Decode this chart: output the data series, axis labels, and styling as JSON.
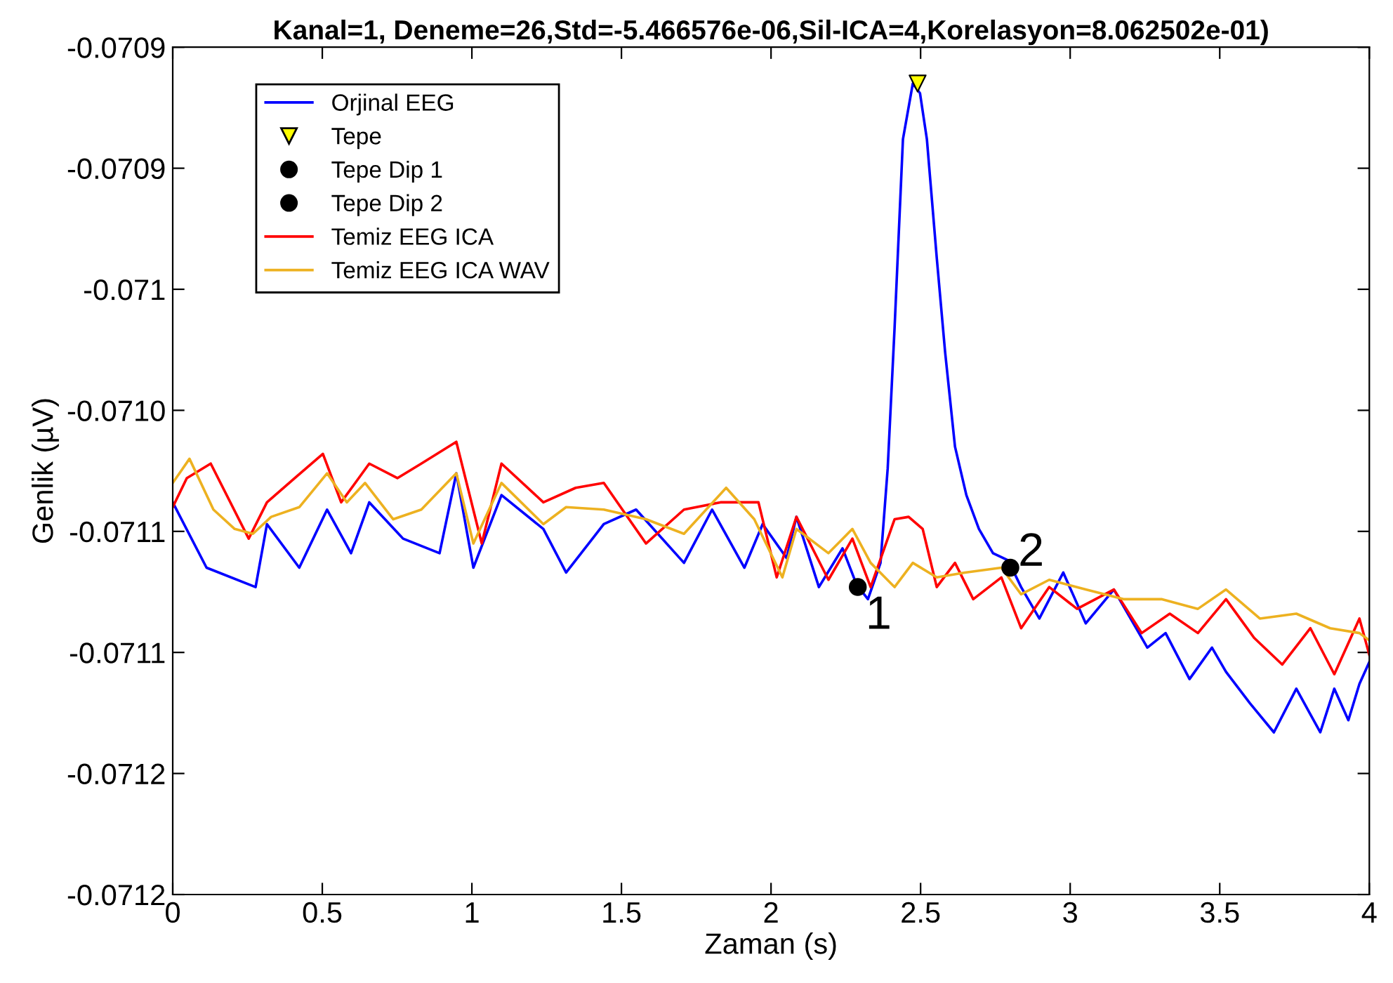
{
  "chart_data": {
    "type": "line",
    "title": "Kanal=1, Deneme=26,Std=-5.466576e-06,Sil-ICA=4,Korelasyon=8.062502e-01)",
    "xlabel": "Zaman (s)",
    "ylabel": "Genlik (µV)",
    "xlim": [
      0,
      4
    ],
    "xticks": [
      0,
      0.5,
      1,
      1.5,
      2,
      2.5,
      3,
      3.5,
      4
    ],
    "ylim": [
      -0.0712,
      -0.07085
    ],
    "yticks": [
      {
        "value": -0.0712,
        "label": "-0.0712"
      },
      {
        "value": -0.07115,
        "label": "-0.0712"
      },
      {
        "value": -0.0711,
        "label": "-0.0711"
      },
      {
        "value": -0.07105,
        "label": "-0.0711"
      },
      {
        "value": -0.071,
        "label": "-0.0710"
      },
      {
        "value": -0.07095,
        "label": "-0.071"
      },
      {
        "value": -0.0709,
        "label": "-0.0709"
      },
      {
        "value": -0.07085,
        "label": "-0.0709"
      }
    ],
    "grid": false,
    "legend": "top left",
    "series": [
      {
        "name": "Orjinal EEG",
        "color": "#0000ff",
        "marker": "none",
        "x": [
          0,
          0.113,
          0.277,
          0.315,
          0.423,
          0.516,
          0.596,
          0.657,
          0.77,
          0.892,
          0.948,
          1.005,
          1.099,
          1.239,
          1.315,
          1.441,
          1.549,
          1.709,
          1.803,
          1.911,
          1.972,
          2.052,
          2.085,
          2.16,
          2.239,
          2.286,
          2.324,
          2.366,
          2.39,
          2.413,
          2.441,
          2.474,
          2.498,
          2.521,
          2.554,
          2.582,
          2.615,
          2.653,
          2.695,
          2.742,
          2.793,
          2.836,
          2.897,
          2.977,
          3.052,
          3.146,
          3.258,
          3.319,
          3.399,
          3.474,
          3.521,
          3.601,
          3.681,
          3.756,
          3.836,
          3.883,
          3.93,
          3.967,
          4.0
        ],
        "values": [
          -0.071038,
          -0.071065,
          -0.071073,
          -0.071047,
          -0.071065,
          -0.071041,
          -0.071059,
          -0.071038,
          -0.071053,
          -0.071059,
          -0.071026,
          -0.071065,
          -0.071035,
          -0.071049,
          -0.071067,
          -0.071047,
          -0.071041,
          -0.071063,
          -0.071041,
          -0.071065,
          -0.071047,
          -0.071061,
          -0.071044,
          -0.071073,
          -0.071057,
          -0.071072,
          -0.071078,
          -0.071063,
          -0.071024,
          -0.070966,
          -0.070888,
          -0.070865,
          -0.070869,
          -0.070888,
          -0.070937,
          -0.070976,
          -0.071015,
          -0.071035,
          -0.071049,
          -0.071059,
          -0.071062,
          -0.071073,
          -0.071086,
          -0.071067,
          -0.071088,
          -0.071074,
          -0.071098,
          -0.071092,
          -0.071111,
          -0.071098,
          -0.071108,
          -0.071121,
          -0.071133,
          -0.071115,
          -0.071133,
          -0.071115,
          -0.071128,
          -0.071113,
          -0.071104
        ]
      },
      {
        "name": "Tepe",
        "type": "scatter",
        "color": "#ffff00",
        "marker": "triangle",
        "x": [
          2.49
        ],
        "values": [
          -0.070865
        ]
      },
      {
        "name": "Tepe Dip 1",
        "type": "scatter",
        "color": "#000000",
        "marker": "circle",
        "x": [
          2.29
        ],
        "values": [
          -0.071073
        ]
      },
      {
        "name": "Tepe Dip 2",
        "type": "scatter",
        "color": "#000000",
        "marker": "circle",
        "x": [
          2.8
        ],
        "values": [
          -0.071065
        ]
      },
      {
        "name": "Temiz EEG ICA",
        "color": "#ff0000",
        "marker": "none",
        "x": [
          0,
          0.047,
          0.127,
          0.254,
          0.315,
          0.408,
          0.502,
          0.563,
          0.657,
          0.751,
          0.831,
          0.948,
          1.033,
          1.099,
          1.239,
          1.347,
          1.441,
          1.582,
          1.709,
          1.831,
          1.958,
          2.019,
          2.085,
          2.192,
          2.272,
          2.333,
          2.413,
          2.46,
          2.507,
          2.554,
          2.615,
          2.676,
          2.77,
          2.836,
          2.93,
          3.023,
          3.146,
          3.239,
          3.333,
          3.427,
          3.521,
          3.615,
          3.709,
          3.803,
          3.883,
          3.967,
          4.0
        ],
        "values": [
          -0.07104,
          -0.071028,
          -0.071022,
          -0.071053,
          -0.071038,
          -0.071028,
          -0.071018,
          -0.071038,
          -0.071022,
          -0.071028,
          -0.071022,
          -0.071013,
          -0.071055,
          -0.071022,
          -0.071038,
          -0.071032,
          -0.07103,
          -0.071055,
          -0.071041,
          -0.071038,
          -0.071038,
          -0.071069,
          -0.071044,
          -0.07107,
          -0.071053,
          -0.071073,
          -0.071045,
          -0.071044,
          -0.071049,
          -0.071073,
          -0.071063,
          -0.071078,
          -0.071069,
          -0.07109,
          -0.071073,
          -0.071082,
          -0.071074,
          -0.071092,
          -0.071084,
          -0.071092,
          -0.071078,
          -0.071094,
          -0.071105,
          -0.07109,
          -0.071109,
          -0.071086,
          -0.071101
        ]
      },
      {
        "name": "Temiz EEG ICA WAV",
        "color": "#edb120",
        "marker": "none",
        "x": [
          0,
          0.056,
          0.136,
          0.207,
          0.268,
          0.329,
          0.423,
          0.516,
          0.582,
          0.643,
          0.737,
          0.831,
          0.948,
          1.005,
          1.099,
          1.239,
          1.315,
          1.441,
          1.582,
          1.709,
          1.85,
          1.944,
          2.038,
          2.085,
          2.192,
          2.272,
          2.333,
          2.413,
          2.474,
          2.554,
          2.648,
          2.77,
          2.836,
          2.93,
          3.052,
          3.178,
          3.305,
          3.427,
          3.521,
          3.634,
          3.756,
          3.869,
          3.967,
          4.0
        ],
        "values": [
          -0.07103,
          -0.07102,
          -0.071041,
          -0.071049,
          -0.071051,
          -0.071044,
          -0.07104,
          -0.071026,
          -0.071038,
          -0.07103,
          -0.071045,
          -0.071041,
          -0.071026,
          -0.071055,
          -0.07103,
          -0.071047,
          -0.07104,
          -0.071041,
          -0.071045,
          -0.071051,
          -0.071032,
          -0.071045,
          -0.071069,
          -0.071049,
          -0.071059,
          -0.071049,
          -0.071063,
          -0.071073,
          -0.071063,
          -0.071069,
          -0.071067,
          -0.071065,
          -0.071076,
          -0.07107,
          -0.071074,
          -0.071078,
          -0.071078,
          -0.071082,
          -0.071074,
          -0.071086,
          -0.071084,
          -0.07109,
          -0.071092,
          -0.071095
        ]
      }
    ],
    "annotations": [
      {
        "text": "1",
        "x": 2.29,
        "y": -0.071073
      },
      {
        "text": "2",
        "x": 2.8,
        "y": -0.071065
      }
    ]
  }
}
